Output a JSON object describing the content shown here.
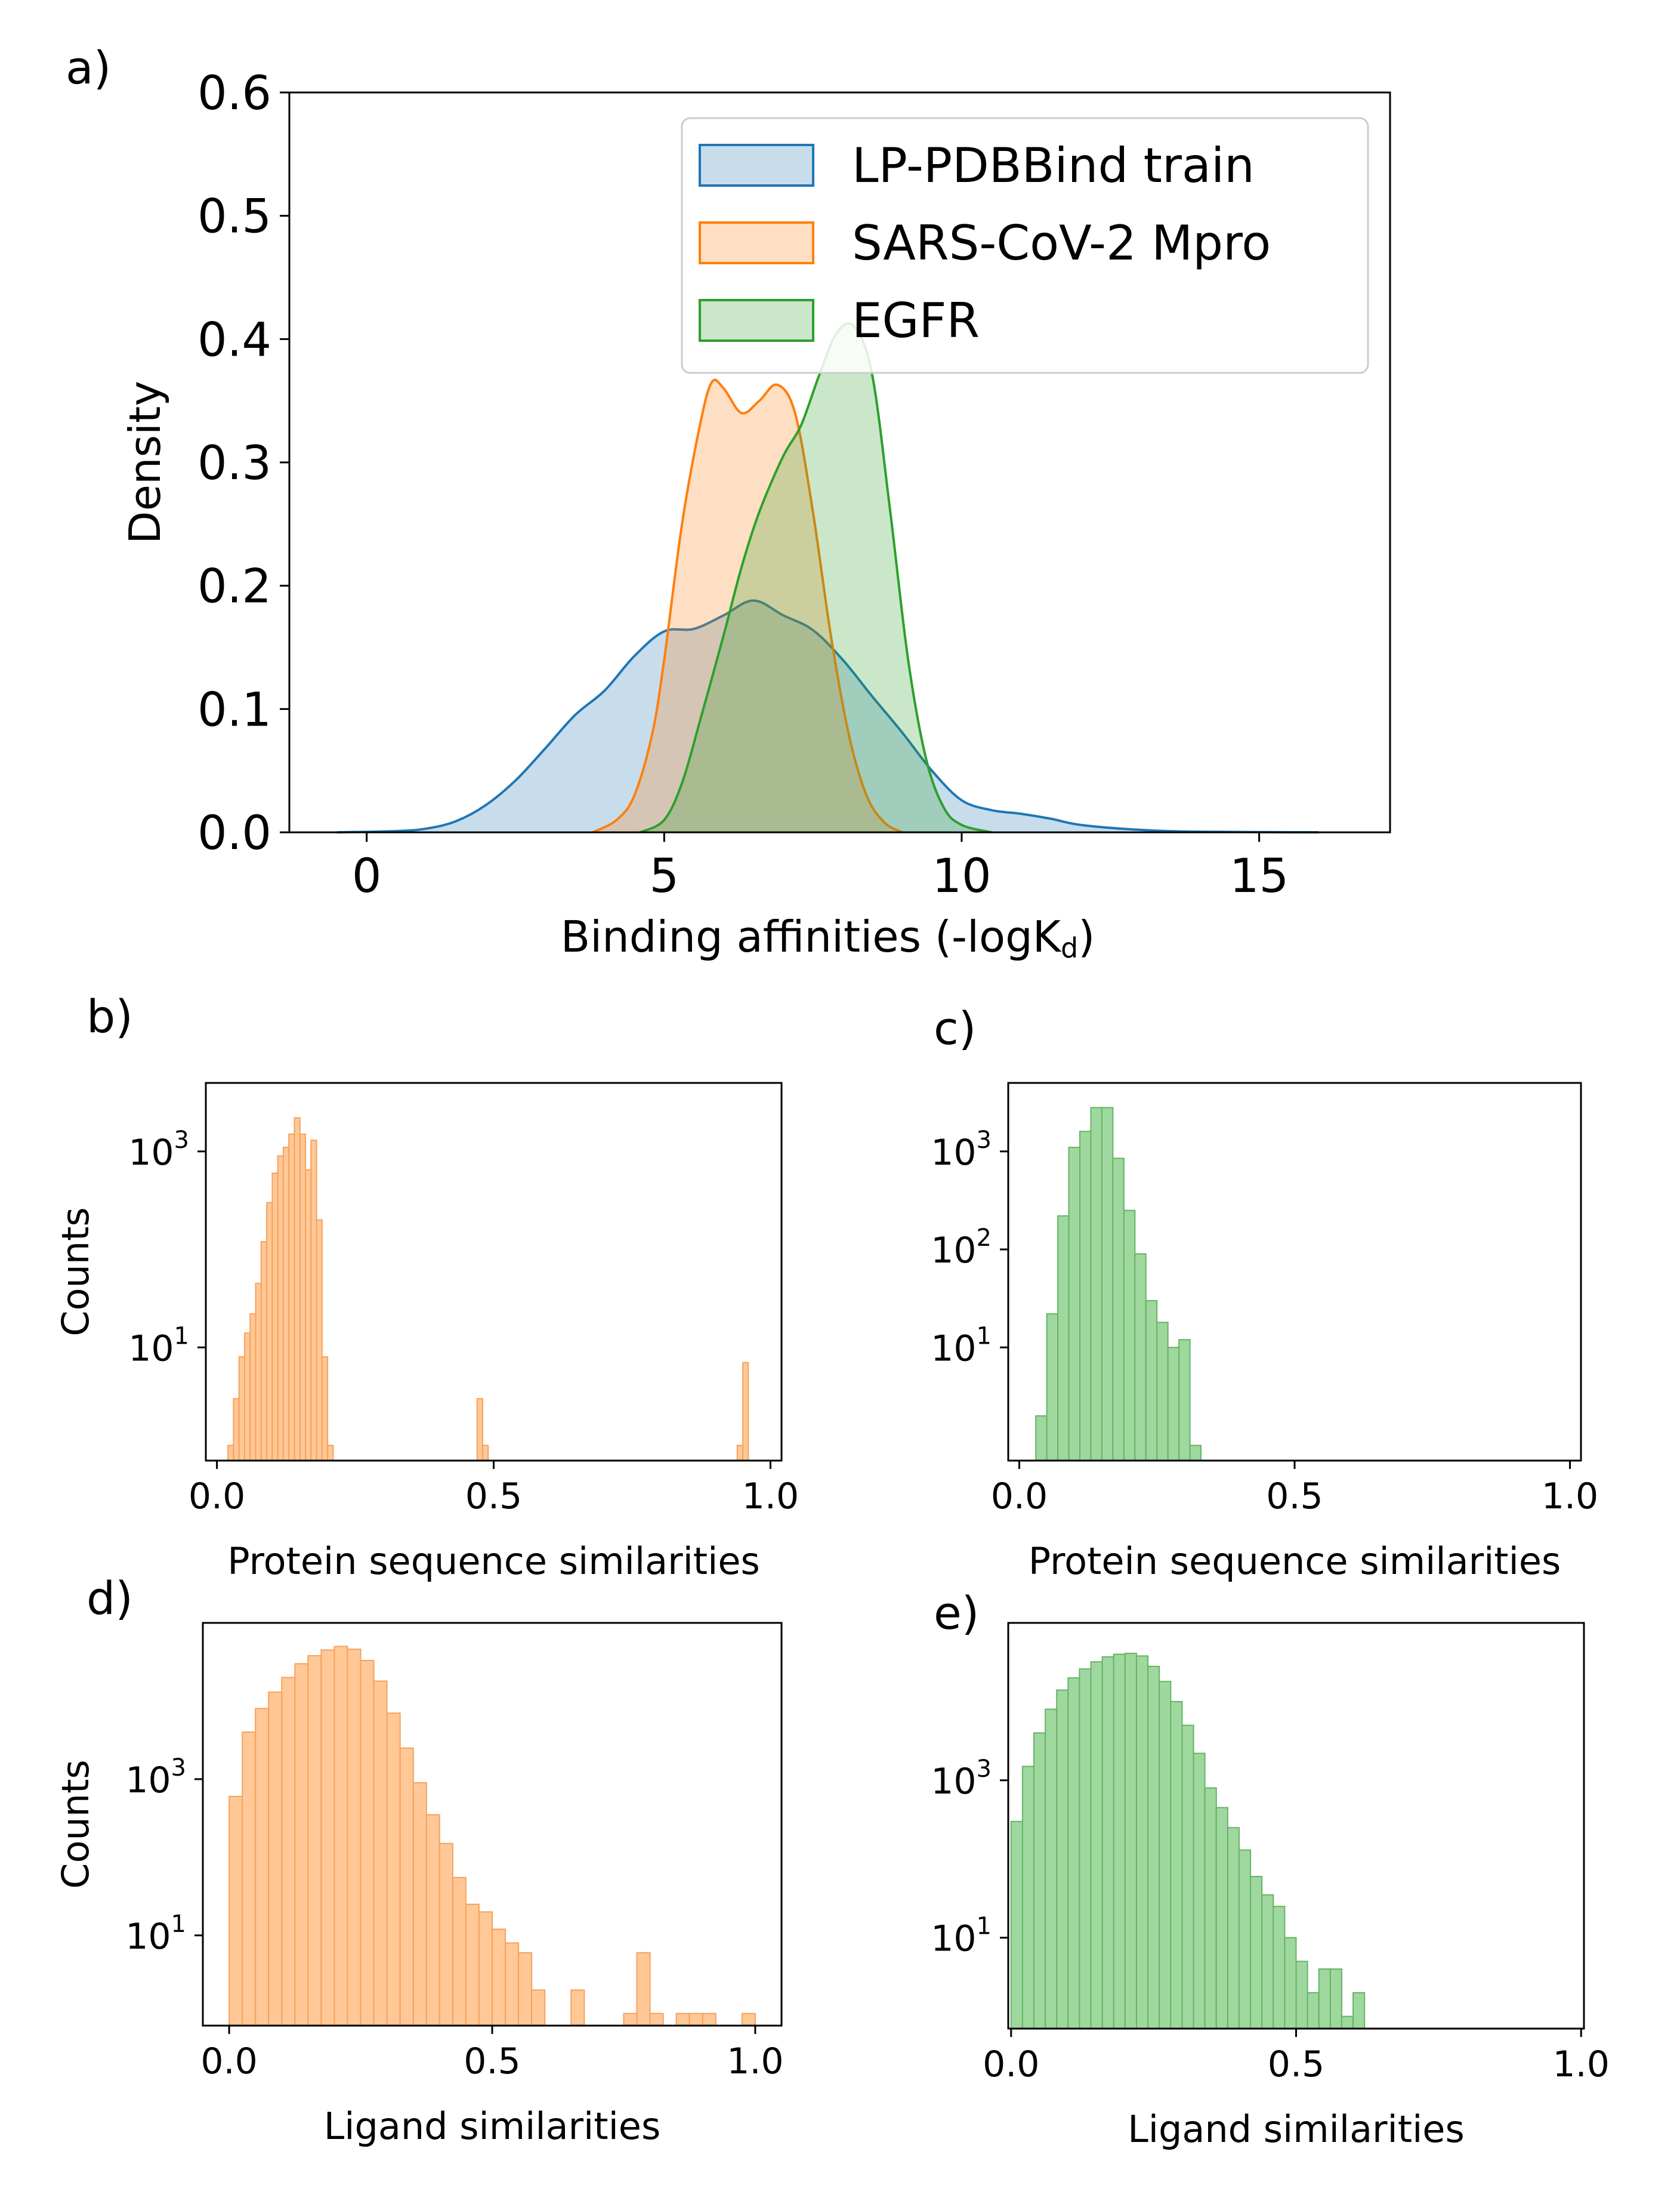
{
  "figure": {
    "panels": [
      "a)",
      "b)",
      "c)",
      "d)",
      "e)"
    ]
  },
  "colors": {
    "lp_pdbbind": "#1f77b4",
    "sars_cov2": "#ff7f0e",
    "egfr": "#2ca02c",
    "orange_bar_fill": "#ffc896",
    "orange_bar_edge": "#f5a25d",
    "green_bar_fill": "#9fd89f",
    "green_bar_edge": "#64b464"
  },
  "chart_data": [
    {
      "type": "area",
      "panel": "a)",
      "xlabel": "Binding affinities (-logK",
      "xlabel_sub": "d",
      "xlabel_tail": ")",
      "ylabel": "Density",
      "xlim": [
        -1.3,
        17.2
      ],
      "ylim": [
        0,
        0.6
      ],
      "xticks": [
        0,
        5,
        10,
        15
      ],
      "yticks": [
        0.0,
        0.1,
        0.2,
        0.3,
        0.4,
        0.5,
        0.6
      ],
      "xtick_labels": [
        "0",
        "5",
        "10",
        "15"
      ],
      "ytick_labels": [
        "0.0",
        "0.1",
        "0.2",
        "0.3",
        "0.4",
        "0.5",
        "0.6"
      ],
      "legend_position": "top-right",
      "series": [
        {
          "name": "LP-PDBBind train",
          "x": [
            -0.5,
            0.5,
            1.0,
            1.5,
            2.0,
            2.5,
            3.0,
            3.5,
            4.0,
            4.5,
            5.0,
            5.5,
            6.0,
            6.5,
            7.0,
            7.5,
            8.0,
            8.5,
            9.0,
            9.5,
            10.0,
            10.5,
            11.0,
            11.5,
            12.0,
            13.0,
            14.0,
            16.0
          ],
          "y": [
            0.0,
            0.001,
            0.003,
            0.009,
            0.022,
            0.042,
            0.068,
            0.095,
            0.115,
            0.143,
            0.163,
            0.165,
            0.176,
            0.188,
            0.176,
            0.164,
            0.14,
            0.11,
            0.081,
            0.05,
            0.026,
            0.018,
            0.015,
            0.011,
            0.006,
            0.002,
            0.0005,
            0.0
          ]
        },
        {
          "name": "SARS-CoV-2 Mpro",
          "x": [
            3.8,
            4.2,
            4.5,
            4.8,
            5.0,
            5.3,
            5.6,
            5.8,
            6.0,
            6.3,
            6.6,
            6.9,
            7.2,
            7.5,
            7.8,
            8.1,
            8.4,
            8.7,
            9.0
          ],
          "y": [
            0.0,
            0.01,
            0.03,
            0.08,
            0.14,
            0.25,
            0.33,
            0.365,
            0.36,
            0.34,
            0.35,
            0.363,
            0.34,
            0.26,
            0.16,
            0.08,
            0.03,
            0.008,
            0.0
          ]
        },
        {
          "name": "EGFR",
          "x": [
            4.6,
            5.0,
            5.3,
            5.6,
            6.0,
            6.3,
            6.6,
            7.0,
            7.3,
            7.6,
            7.9,
            8.2,
            8.5,
            8.8,
            9.1,
            9.4,
            9.7,
            10.0,
            10.5
          ],
          "y": [
            0.0,
            0.01,
            0.04,
            0.09,
            0.16,
            0.215,
            0.26,
            0.305,
            0.33,
            0.37,
            0.405,
            0.41,
            0.37,
            0.26,
            0.14,
            0.06,
            0.02,
            0.006,
            0.0
          ]
        }
      ]
    },
    {
      "type": "bar",
      "panel": "b)",
      "xlabel": "Protein sequence similarities",
      "ylabel": "Counts",
      "yscale": "log",
      "xlim": [
        -0.02,
        1.02
      ],
      "ylim": [
        0.7,
        5000
      ],
      "xticks": [
        0.0,
        0.5,
        1.0
      ],
      "xtick_labels": [
        "0.0",
        "0.5",
        "1.0"
      ],
      "yticks": [
        10,
        1000
      ],
      "ytick_labels": [
        [
          "10",
          "1"
        ],
        [
          "10",
          "3"
        ]
      ],
      "bin_edges": [
        0.02,
        0.03,
        0.04,
        0.05,
        0.06,
        0.07,
        0.08,
        0.09,
        0.1,
        0.11,
        0.12,
        0.13,
        0.14,
        0.15,
        0.16,
        0.17,
        0.18,
        0.19,
        0.2,
        0.21,
        0.47,
        0.48,
        0.49,
        0.5,
        0.94,
        0.95,
        0.96
      ],
      "bars": [
        {
          "x0": 0.02,
          "x1": 0.03,
          "count": 1
        },
        {
          "x0": 0.03,
          "x1": 0.04,
          "count": 3
        },
        {
          "x0": 0.04,
          "x1": 0.05,
          "count": 8
        },
        {
          "x0": 0.05,
          "x1": 0.06,
          "count": 14
        },
        {
          "x0": 0.06,
          "x1": 0.07,
          "count": 22
        },
        {
          "x0": 0.07,
          "x1": 0.08,
          "count": 45
        },
        {
          "x0": 0.08,
          "x1": 0.09,
          "count": 120
        },
        {
          "x0": 0.09,
          "x1": 0.1,
          "count": 300
        },
        {
          "x0": 0.1,
          "x1": 0.11,
          "count": 600
        },
        {
          "x0": 0.11,
          "x1": 0.12,
          "count": 900
        },
        {
          "x0": 0.12,
          "x1": 0.13,
          "count": 1100
        },
        {
          "x0": 0.13,
          "x1": 0.14,
          "count": 1500
        },
        {
          "x0": 0.14,
          "x1": 0.15,
          "count": 2200
        },
        {
          "x0": 0.15,
          "x1": 0.16,
          "count": 1500
        },
        {
          "x0": 0.16,
          "x1": 0.17,
          "count": 650
        },
        {
          "x0": 0.17,
          "x1": 0.18,
          "count": 1300
        },
        {
          "x0": 0.18,
          "x1": 0.19,
          "count": 200
        },
        {
          "x0": 0.19,
          "x1": 0.2,
          "count": 8
        },
        {
          "x0": 0.2,
          "x1": 0.21,
          "count": 1
        },
        {
          "x0": 0.47,
          "x1": 0.48,
          "count": 3
        },
        {
          "x0": 0.48,
          "x1": 0.49,
          "count": 1
        },
        {
          "x0": 0.94,
          "x1": 0.95,
          "count": 1
        },
        {
          "x0": 0.95,
          "x1": 0.96,
          "count": 7
        }
      ]
    },
    {
      "type": "bar",
      "panel": "c)",
      "xlabel": "Protein sequence similarities",
      "ylabel": "",
      "yscale": "log",
      "xlim": [
        -0.02,
        1.02
      ],
      "ylim": [
        0.7,
        5000
      ],
      "xticks": [
        0.0,
        0.5,
        1.0
      ],
      "xtick_labels": [
        "0.0",
        "0.5",
        "1.0"
      ],
      "yticks": [
        10,
        100,
        1000
      ],
      "ytick_labels": [
        [
          "10",
          "1"
        ],
        [
          "10",
          "2"
        ],
        [
          "10",
          "3"
        ]
      ],
      "bars": [
        {
          "x0": 0.03,
          "x1": 0.05,
          "count": 2
        },
        {
          "x0": 0.05,
          "x1": 0.07,
          "count": 22
        },
        {
          "x0": 0.07,
          "x1": 0.09,
          "count": 220
        },
        {
          "x0": 0.09,
          "x1": 0.11,
          "count": 1100
        },
        {
          "x0": 0.11,
          "x1": 0.13,
          "count": 1600
        },
        {
          "x0": 0.13,
          "x1": 0.15,
          "count": 2800
        },
        {
          "x0": 0.15,
          "x1": 0.17,
          "count": 2800
        },
        {
          "x0": 0.17,
          "x1": 0.19,
          "count": 850
        },
        {
          "x0": 0.19,
          "x1": 0.21,
          "count": 250
        },
        {
          "x0": 0.21,
          "x1": 0.23,
          "count": 90
        },
        {
          "x0": 0.23,
          "x1": 0.25,
          "count": 30
        },
        {
          "x0": 0.25,
          "x1": 0.27,
          "count": 18
        },
        {
          "x0": 0.27,
          "x1": 0.29,
          "count": 10
        },
        {
          "x0": 0.29,
          "x1": 0.31,
          "count": 12
        },
        {
          "x0": 0.31,
          "x1": 0.33,
          "count": 1
        }
      ]
    },
    {
      "type": "bar",
      "panel": "d)",
      "xlabel": "Ligand similarities",
      "ylabel": "Counts",
      "yscale": "log",
      "xlim": [
        -0.05,
        1.05
      ],
      "ylim": [
        0.7,
        100000
      ],
      "xticks": [
        0.0,
        0.5,
        1.0
      ],
      "xtick_labels": [
        "0.0",
        "0.5",
        "1.0"
      ],
      "yticks": [
        10,
        1000
      ],
      "ytick_labels": [
        [
          "10",
          "1"
        ],
        [
          "10",
          "3"
        ]
      ],
      "bars": [
        {
          "x0": 0.0,
          "x1": 0.025,
          "count": 600
        },
        {
          "x0": 0.025,
          "x1": 0.05,
          "count": 4000
        },
        {
          "x0": 0.05,
          "x1": 0.075,
          "count": 8000
        },
        {
          "x0": 0.075,
          "x1": 0.1,
          "count": 13000
        },
        {
          "x0": 0.1,
          "x1": 0.125,
          "count": 20000
        },
        {
          "x0": 0.125,
          "x1": 0.15,
          "count": 30000
        },
        {
          "x0": 0.15,
          "x1": 0.175,
          "count": 38000
        },
        {
          "x0": 0.175,
          "x1": 0.2,
          "count": 45000
        },
        {
          "x0": 0.2,
          "x1": 0.225,
          "count": 50000
        },
        {
          "x0": 0.225,
          "x1": 0.25,
          "count": 46000
        },
        {
          "x0": 0.25,
          "x1": 0.275,
          "count": 33000
        },
        {
          "x0": 0.275,
          "x1": 0.3,
          "count": 18000
        },
        {
          "x0": 0.3,
          "x1": 0.325,
          "count": 7000
        },
        {
          "x0": 0.325,
          "x1": 0.35,
          "count": 2500
        },
        {
          "x0": 0.35,
          "x1": 0.375,
          "count": 900
        },
        {
          "x0": 0.375,
          "x1": 0.4,
          "count": 350
        },
        {
          "x0": 0.4,
          "x1": 0.425,
          "count": 150
        },
        {
          "x0": 0.425,
          "x1": 0.45,
          "count": 55
        },
        {
          "x0": 0.45,
          "x1": 0.475,
          "count": 25
        },
        {
          "x0": 0.475,
          "x1": 0.5,
          "count": 20
        },
        {
          "x0": 0.5,
          "x1": 0.525,
          "count": 12
        },
        {
          "x0": 0.525,
          "x1": 0.55,
          "count": 8
        },
        {
          "x0": 0.55,
          "x1": 0.575,
          "count": 6
        },
        {
          "x0": 0.575,
          "x1": 0.6,
          "count": 2
        },
        {
          "x0": 0.65,
          "x1": 0.675,
          "count": 2
        },
        {
          "x0": 0.75,
          "x1": 0.775,
          "count": 1
        },
        {
          "x0": 0.775,
          "x1": 0.8,
          "count": 6
        },
        {
          "x0": 0.8,
          "x1": 0.825,
          "count": 1
        },
        {
          "x0": 0.85,
          "x1": 0.875,
          "count": 1
        },
        {
          "x0": 0.875,
          "x1": 0.9,
          "count": 1
        },
        {
          "x0": 0.9,
          "x1": 0.925,
          "count": 1
        },
        {
          "x0": 0.975,
          "x1": 1.0,
          "count": 1
        }
      ]
    },
    {
      "type": "bar",
      "panel": "e)",
      "xlabel": "Ligand similarities",
      "ylabel": "",
      "yscale": "log",
      "xlim": [
        -0.005,
        1.005
      ],
      "ylim": [
        0.7,
        100000
      ],
      "xticks": [
        0.0,
        0.5,
        1.0
      ],
      "xtick_labels": [
        "0.0",
        "0.5",
        "1.0"
      ],
      "yticks": [
        10,
        1000
      ],
      "ytick_labels": [
        [
          "10",
          "1"
        ],
        [
          "10",
          "3"
        ]
      ],
      "bars": [
        {
          "x0": 0.0,
          "x1": 0.02,
          "count": 300
        },
        {
          "x0": 0.02,
          "x1": 0.04,
          "count": 1500
        },
        {
          "x0": 0.04,
          "x1": 0.06,
          "count": 4000
        },
        {
          "x0": 0.06,
          "x1": 0.08,
          "count": 8000
        },
        {
          "x0": 0.08,
          "x1": 0.1,
          "count": 14000
        },
        {
          "x0": 0.1,
          "x1": 0.12,
          "count": 20000
        },
        {
          "x0": 0.12,
          "x1": 0.14,
          "count": 26000
        },
        {
          "x0": 0.14,
          "x1": 0.16,
          "count": 32000
        },
        {
          "x0": 0.16,
          "x1": 0.18,
          "count": 37000
        },
        {
          "x0": 0.18,
          "x1": 0.2,
          "count": 40000
        },
        {
          "x0": 0.2,
          "x1": 0.22,
          "count": 41000
        },
        {
          "x0": 0.22,
          "x1": 0.24,
          "count": 38000
        },
        {
          "x0": 0.24,
          "x1": 0.26,
          "count": 28000
        },
        {
          "x0": 0.26,
          "x1": 0.28,
          "count": 18000
        },
        {
          "x0": 0.28,
          "x1": 0.3,
          "count": 10000
        },
        {
          "x0": 0.3,
          "x1": 0.32,
          "count": 5000
        },
        {
          "x0": 0.32,
          "x1": 0.34,
          "count": 2200
        },
        {
          "x0": 0.34,
          "x1": 0.36,
          "count": 800
        },
        {
          "x0": 0.36,
          "x1": 0.38,
          "count": 450
        },
        {
          "x0": 0.38,
          "x1": 0.4,
          "count": 250
        },
        {
          "x0": 0.4,
          "x1": 0.42,
          "count": 130
        },
        {
          "x0": 0.42,
          "x1": 0.44,
          "count": 60
        },
        {
          "x0": 0.44,
          "x1": 0.46,
          "count": 35
        },
        {
          "x0": 0.46,
          "x1": 0.48,
          "count": 25
        },
        {
          "x0": 0.48,
          "x1": 0.5,
          "count": 10
        },
        {
          "x0": 0.5,
          "x1": 0.52,
          "count": 5
        },
        {
          "x0": 0.52,
          "x1": 0.54,
          "count": 2
        },
        {
          "x0": 0.54,
          "x1": 0.56,
          "count": 4
        },
        {
          "x0": 0.56,
          "x1": 0.58,
          "count": 4
        },
        {
          "x0": 0.58,
          "x1": 0.6,
          "count": 1
        },
        {
          "x0": 0.6,
          "x1": 0.62,
          "count": 2
        }
      ]
    }
  ]
}
